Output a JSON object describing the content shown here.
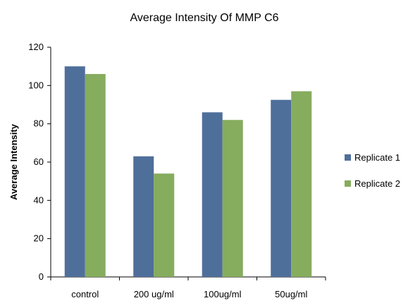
{
  "chart_data": {
    "type": "bar",
    "title": "Average Intensity Of MMP C6",
    "ylabel": "Average Intensity",
    "xlabel": "",
    "categories": [
      "control",
      "200 ug/ml",
      "100ug/ml",
      "50ug/ml"
    ],
    "series": [
      {
        "name": "Replicate 1",
        "color": "#4F6F9B",
        "values": [
          110,
          63,
          86,
          92.5
        ]
      },
      {
        "name": "Replicate 2",
        "color": "#86AC5E",
        "values": [
          106,
          54,
          82,
          97
        ]
      }
    ],
    "ylim": [
      0,
      120
    ],
    "yticks": [
      0,
      20,
      40,
      60,
      80,
      100,
      120
    ],
    "grid": false,
    "legend_position": "right"
  }
}
